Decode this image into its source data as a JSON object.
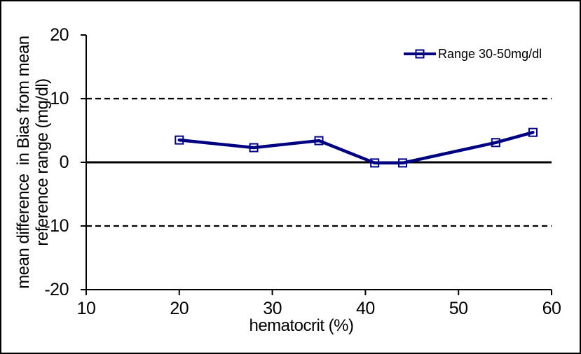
{
  "chart_data": {
    "type": "line",
    "x": [
      20,
      28,
      35,
      41,
      44,
      54,
      58
    ],
    "series": [
      {
        "name": "Range 30-50mg/dl",
        "values": [
          3.5,
          2.3,
          3.4,
          -0.1,
          -0.1,
          3.1,
          4.7
        ],
        "color": "#000080",
        "marker": "open-square"
      }
    ],
    "xlabel": "hematocrit (%)",
    "ylabel_line1": "mean difference  in Bias from mean",
    "ylabel_line2": "reference range (mg/dl)",
    "xlim": [
      10,
      60
    ],
    "ylim": [
      -20,
      20
    ],
    "xticks": [
      10,
      20,
      30,
      40,
      50,
      60
    ],
    "yticks": [
      20,
      10,
      0,
      -10,
      -20
    ],
    "reference_lines": [
      {
        "y": 10,
        "style": "dashed",
        "color": "#000000"
      },
      {
        "y": 0,
        "style": "solid",
        "color": "#000000"
      },
      {
        "y": -10,
        "style": "dashed",
        "color": "#000000"
      }
    ],
    "legend": {
      "position": "top-right",
      "entries": [
        "Range 30-50mg/dl"
      ]
    },
    "grid": false,
    "colors": {
      "series": "#000080",
      "axis": "#000000",
      "background": "#ffffff"
    }
  }
}
